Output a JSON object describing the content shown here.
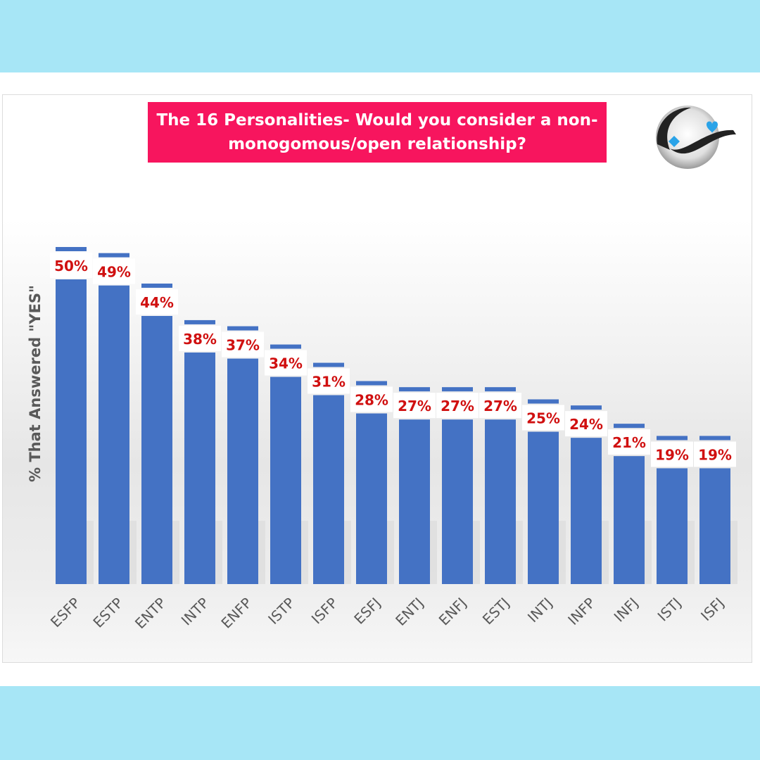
{
  "chart_data": {
    "type": "bar",
    "title": "The 16 Personalities- Would you consider a non-monogomous/open relationship?",
    "title_lines": [
      "The 16 Personalities- Would you consider a non-",
      "monogomous/open relationship?"
    ],
    "ylabel": "% That Answered \"YES\"",
    "xlabel": "",
    "categories": [
      "ESFP",
      "ESTP",
      "ENTP",
      "INTP",
      "ENFP",
      "ISTP",
      "ISFP",
      "ESFJ",
      "ENTJ",
      "ENFJ",
      "ESTJ",
      "INTJ",
      "INFP",
      "INFJ",
      "ISTJ",
      "ISFJ"
    ],
    "values": [
      50,
      49,
      44,
      38,
      37,
      34,
      31,
      28,
      27,
      27,
      27,
      25,
      24,
      21,
      19,
      19
    ],
    "value_labels": [
      "50%",
      "49%",
      "44%",
      "38%",
      "37%",
      "34%",
      "31%",
      "28%",
      "27%",
      "27%",
      "27%",
      "25%",
      "24%",
      "21%",
      "19%",
      "19%"
    ],
    "ylim": [
      0,
      50
    ],
    "grid": false,
    "legend": "none",
    "bar_color": "#4472c4",
    "label_color": "#d01010",
    "title_bg_color": "#f7155e",
    "border_color": "#a7e6f6"
  },
  "logo": {
    "icon": "yin-yang-hearts-logo"
  }
}
